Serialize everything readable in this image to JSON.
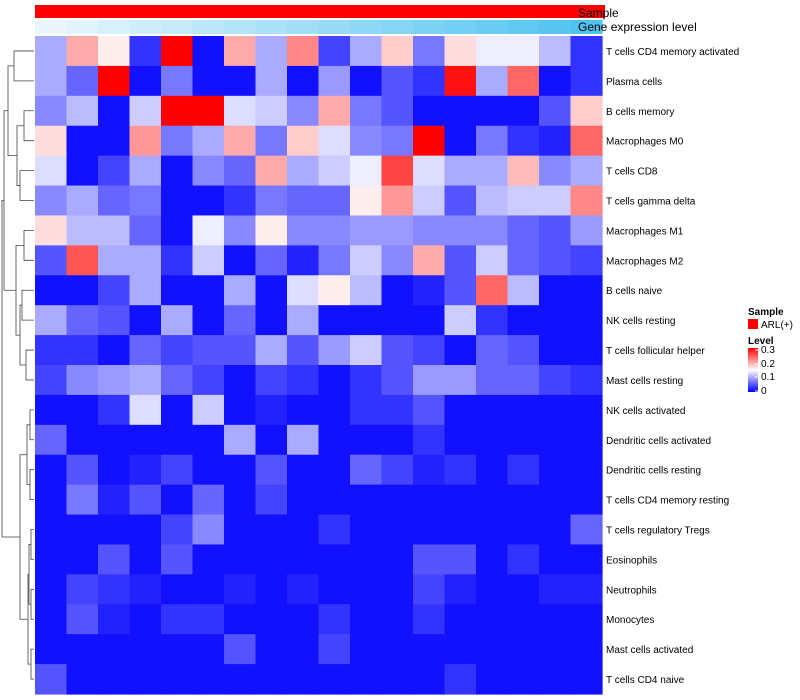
{
  "chart_data": {
    "type": "heatmap",
    "title": "",
    "annotation_tracks": [
      {
        "name": "Sample",
        "values": "ARL(+)"
      },
      {
        "name": "Gene expression level"
      }
    ],
    "legend": {
      "placement": "right",
      "sample_title": "Sample",
      "sample_entries": [
        {
          "label": "ARL(+)",
          "color": "#ff0000"
        }
      ],
      "level_title": "Level",
      "level_ticks": [
        "0.3",
        "0.2",
        "0.1",
        "0"
      ],
      "level_range": [
        0,
        0.3
      ]
    },
    "colors": {
      "low": "#0000ff",
      "mid": "#ffffff",
      "high": "#ff0000",
      "sample_bar": "#ff0000",
      "expr_light": "#eaf6fc",
      "expr_dark": "#4fc3f0"
    },
    "rows": [
      "T cells CD4 memory activated",
      "Plasma cells",
      "B cells memory",
      "Macrophages M0",
      "T cells CD8",
      "T cells gamma delta",
      "Macrophages M1",
      "Macrophages M2",
      "B cells naive",
      "NK cells resting",
      "T cells follicular helper",
      "Mast cells resting",
      "NK cells activated",
      "Dendritic cells activated",
      "Dendritic cells resting",
      "T cells CD4 memory resting",
      "T cells regulatory  Tregs",
      "Eosinophils",
      "Neutrophils",
      "Monocytes",
      "Mast cells activated",
      "T cells CD4 naive"
    ],
    "n_columns": 18,
    "values": [
      [
        0.1,
        0.2,
        0.16,
        0.03,
        0.3,
        0.01,
        0.2,
        0.1,
        0.22,
        0.04,
        0.1,
        0.18,
        0.07,
        0.17,
        0.14,
        0.14,
        0.11,
        0.03
      ],
      [
        0.1,
        0.06,
        0.3,
        0.01,
        0.07,
        0.01,
        0.01,
        0.1,
        0.01,
        0.09,
        0.01,
        0.05,
        0.03,
        0.29,
        0.1,
        0.24,
        0.01,
        0.03
      ],
      [
        0.08,
        0.11,
        0.01,
        0.12,
        0.3,
        0.3,
        0.13,
        0.12,
        0.08,
        0.2,
        0.07,
        0.05,
        0.01,
        0.01,
        0.01,
        0.01,
        0.05,
        0.18
      ],
      [
        0.17,
        0.01,
        0.01,
        0.21,
        0.07,
        0.1,
        0.2,
        0.07,
        0.18,
        0.13,
        0.08,
        0.07,
        0.3,
        0.01,
        0.07,
        0.03,
        0.02,
        0.24
      ],
      [
        0.13,
        0.01,
        0.04,
        0.1,
        0.01,
        0.08,
        0.06,
        0.2,
        0.1,
        0.12,
        0.14,
        0.26,
        0.13,
        0.1,
        0.1,
        0.19,
        0.08,
        0.1
      ],
      [
        0.08,
        0.1,
        0.06,
        0.07,
        0.01,
        0.01,
        0.03,
        0.07,
        0.06,
        0.06,
        0.16,
        0.21,
        0.12,
        0.05,
        0.11,
        0.12,
        0.12,
        0.22
      ],
      [
        0.17,
        0.11,
        0.11,
        0.06,
        0.01,
        0.14,
        0.08,
        0.16,
        0.08,
        0.08,
        0.09,
        0.09,
        0.08,
        0.08,
        0.08,
        0.06,
        0.05,
        0.09
      ],
      [
        0.05,
        0.25,
        0.1,
        0.1,
        0.03,
        0.12,
        0.01,
        0.06,
        0.02,
        0.07,
        0.12,
        0.08,
        0.2,
        0.05,
        0.12,
        0.06,
        0.05,
        0.04
      ],
      [
        0.01,
        0.01,
        0.04,
        0.1,
        0.01,
        0.01,
        0.1,
        0.01,
        0.13,
        0.16,
        0.11,
        0.01,
        0.02,
        0.05,
        0.24,
        0.11,
        0.01,
        0.01
      ],
      [
        0.1,
        0.06,
        0.05,
        0.01,
        0.1,
        0.01,
        0.06,
        0.01,
        0.1,
        0.01,
        0.01,
        0.01,
        0.01,
        0.12,
        0.03,
        0.01,
        0.01,
        0.01
      ],
      [
        0.03,
        0.03,
        0.01,
        0.06,
        0.04,
        0.05,
        0.05,
        0.1,
        0.05,
        0.09,
        0.12,
        0.05,
        0.04,
        0.01,
        0.06,
        0.05,
        0.01,
        0.01
      ],
      [
        0.04,
        0.08,
        0.09,
        0.1,
        0.06,
        0.04,
        0.01,
        0.04,
        0.03,
        0.01,
        0.03,
        0.05,
        0.09,
        0.09,
        0.06,
        0.06,
        0.04,
        0.03
      ],
      [
        0.01,
        0.01,
        0.03,
        0.13,
        0.01,
        0.12,
        0.01,
        0.02,
        0.01,
        0.01,
        0.03,
        0.03,
        0.05,
        0.01,
        0.01,
        0.01,
        0.01,
        0.01
      ],
      [
        0.06,
        0.01,
        0.01,
        0.01,
        0.01,
        0.01,
        0.1,
        0.01,
        0.1,
        0.01,
        0.01,
        0.01,
        0.03,
        0.01,
        0.01,
        0.01,
        0.01,
        0.01
      ],
      [
        0.01,
        0.05,
        0.01,
        0.02,
        0.04,
        0.01,
        0.01,
        0.05,
        0.01,
        0.01,
        0.06,
        0.04,
        0.02,
        0.03,
        0.01,
        0.03,
        0.01,
        0.01
      ],
      [
        0.01,
        0.07,
        0.02,
        0.05,
        0.01,
        0.06,
        0.01,
        0.04,
        0.01,
        0.01,
        0.01,
        0.01,
        0.01,
        0.01,
        0.01,
        0.01,
        0.01,
        0.01
      ],
      [
        0.01,
        0.01,
        0.01,
        0.01,
        0.04,
        0.08,
        0.01,
        0.01,
        0.01,
        0.03,
        0.01,
        0.01,
        0.01,
        0.01,
        0.01,
        0.01,
        0.01,
        0.06
      ],
      [
        0.01,
        0.01,
        0.05,
        0.01,
        0.05,
        0.01,
        0.01,
        0.01,
        0.01,
        0.01,
        0.01,
        0.01,
        0.05,
        0.05,
        0.01,
        0.03,
        0.01,
        0.01
      ],
      [
        0.01,
        0.04,
        0.03,
        0.02,
        0.01,
        0.01,
        0.02,
        0.01,
        0.02,
        0.01,
        0.01,
        0.01,
        0.04,
        0.02,
        0.01,
        0.01,
        0.02,
        0.02
      ],
      [
        0.01,
        0.05,
        0.02,
        0.01,
        0.03,
        0.03,
        0.01,
        0.01,
        0.01,
        0.03,
        0.01,
        0.01,
        0.03,
        0.01,
        0.01,
        0.01,
        0.01,
        0.01
      ],
      [
        0.01,
        0.01,
        0.01,
        0.01,
        0.01,
        0.01,
        0.05,
        0.01,
        0.01,
        0.04,
        0.01,
        0.01,
        0.01,
        0.01,
        0.01,
        0.01,
        0.01,
        0.01
      ],
      [
        0.05,
        0.01,
        0.01,
        0.01,
        0.01,
        0.01,
        0.01,
        0.01,
        0.01,
        0.01,
        0.01,
        0.01,
        0.01,
        0.03,
        0.01,
        0.01,
        0.01,
        0.01
      ]
    ]
  }
}
